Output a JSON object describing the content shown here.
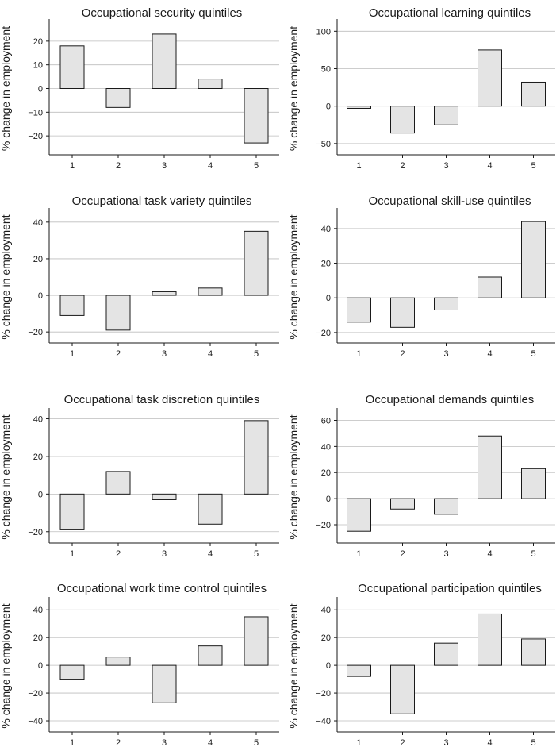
{
  "chart_data": [
    {
      "type": "bar",
      "title": "Occupational security quintiles",
      "ylabel": "% change in employment",
      "categories": [
        "1",
        "2",
        "3",
        "4",
        "5"
      ],
      "values": [
        18,
        -8,
        23,
        4,
        -23
      ],
      "ylim": [
        -28,
        28
      ],
      "yticks": [
        20,
        10,
        0,
        -10,
        -20
      ],
      "ytick_labels": [
        "20",
        "10",
        "0",
        "−10",
        "−20"
      ],
      "grid": true
    },
    {
      "type": "bar",
      "title": "Occupational learning quintiles",
      "ylabel": "% change in employment",
      "categories": [
        "1",
        "2",
        "3",
        "4",
        "5"
      ],
      "values": [
        -3,
        -36,
        -25,
        75,
        32
      ],
      "ylim": [
        -65,
        112
      ],
      "yticks": [
        100,
        50,
        0,
        -50
      ],
      "ytick_labels": [
        "100",
        "50",
        "0",
        "−50"
      ],
      "grid": true
    },
    {
      "type": "bar",
      "title": "Occupational task variety quintiles",
      "ylabel": "% change in employment",
      "categories": [
        "1",
        "2",
        "3",
        "4",
        "5"
      ],
      "values": [
        -11,
        -19,
        2,
        4,
        35
      ],
      "ylim": [
        -26,
        46
      ],
      "yticks": [
        40,
        20,
        0,
        -20
      ],
      "ytick_labels": [
        "40",
        "20",
        "0",
        "−20"
      ],
      "grid": true
    },
    {
      "type": "bar",
      "title": "Occupational skill-use quintiles",
      "ylabel": "% change in employment",
      "categories": [
        "1",
        "2",
        "3",
        "4",
        "5"
      ],
      "values": [
        -14,
        -17,
        -7,
        12,
        44
      ],
      "ylim": [
        -26,
        50
      ],
      "yticks": [
        40,
        20,
        0,
        -20
      ],
      "ytick_labels": [
        "40",
        "20",
        "0",
        "−20"
      ],
      "grid": true
    },
    {
      "type": "bar",
      "title": "Occupational task discretion quintiles",
      "ylabel": "% change in employment",
      "categories": [
        "1",
        "2",
        "3",
        "4",
        "5"
      ],
      "values": [
        -19,
        12,
        -3,
        -16,
        39
      ],
      "ylim": [
        -26,
        44
      ],
      "yticks": [
        40,
        20,
        0,
        -20
      ],
      "ytick_labels": [
        "40",
        "20",
        "0",
        "−20"
      ],
      "grid": true
    },
    {
      "type": "bar",
      "title": "Occupational demands quintiles",
      "ylabel": "% change in employment",
      "categories": [
        "1",
        "2",
        "3",
        "4",
        "5"
      ],
      "values": [
        -25,
        -8,
        -12,
        48,
        23
      ],
      "ylim": [
        -34,
        67
      ],
      "yticks": [
        60,
        40,
        20,
        0,
        -20
      ],
      "ytick_labels": [
        "60",
        "40",
        "20",
        "0",
        "−20"
      ],
      "grid": true
    },
    {
      "type": "bar",
      "title": "Occupational work time control quintiles",
      "ylabel": "% change in employment",
      "categories": [
        "1",
        "2",
        "3",
        "4",
        "5"
      ],
      "values": [
        -10,
        6,
        -27,
        14,
        35
      ],
      "ylim": [
        -48,
        47
      ],
      "yticks": [
        40,
        20,
        0,
        -20,
        -40
      ],
      "ytick_labels": [
        "40",
        "20",
        "0",
        "−20",
        "−40"
      ],
      "grid": true
    },
    {
      "type": "bar",
      "title": "Occupational participation quintiles",
      "ylabel": "% change in employment",
      "categories": [
        "1",
        "2",
        "3",
        "4",
        "5"
      ],
      "values": [
        -8,
        -35,
        16,
        37,
        19
      ],
      "ylim": [
        -48,
        47
      ],
      "yticks": [
        40,
        20,
        0,
        -20,
        -40
      ],
      "ytick_labels": [
        "40",
        "20",
        "0",
        "−20",
        "−40"
      ],
      "grid": true
    }
  ]
}
